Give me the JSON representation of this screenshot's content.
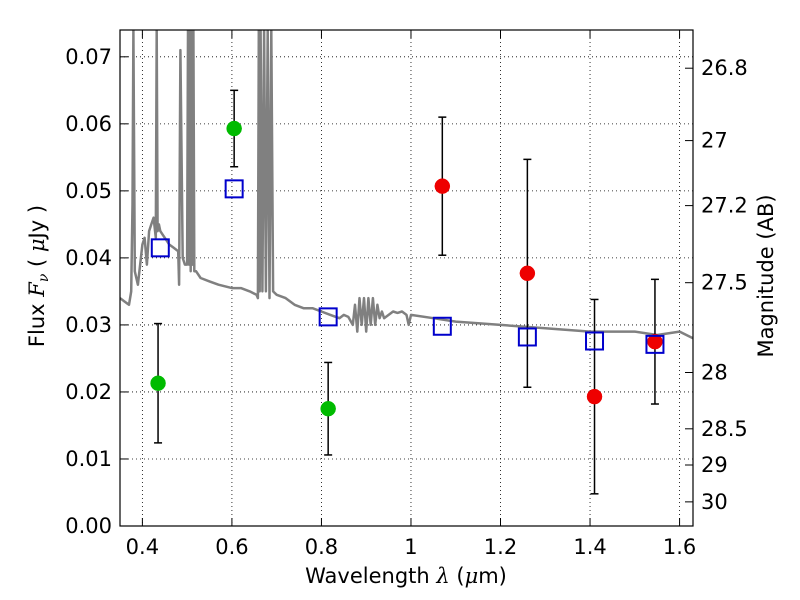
{
  "chart_data": {
    "type": "scatter",
    "xlim": [
      0.35,
      1.63
    ],
    "ylim": [
      0.0,
      0.074
    ],
    "grid": true,
    "x_ticks": [
      0.4,
      0.6,
      0.8,
      1.0,
      1.2,
      1.4,
      1.6
    ],
    "x_tick_labels": [
      "0.4",
      "0.6",
      "0.8",
      "1",
      "1.2",
      "1.4",
      "1.6"
    ],
    "y_ticks": [
      0.0,
      0.01,
      0.02,
      0.03,
      0.04,
      0.05,
      0.06,
      0.07
    ],
    "y_tick_labels": [
      "0.00",
      "0.01",
      "0.02",
      "0.03",
      "0.04",
      "0.05",
      "0.06",
      "0.07"
    ],
    "x_label": {
      "prefix": "Wavelength  ",
      "symbol": "λ",
      "suffix": " (",
      "unit_symbol": "μ",
      "unit_tail": "m)"
    },
    "y_label": {
      "prefix": "Flux  ",
      "symbol": "F",
      "subscript": "ν",
      "middle": "  (  ",
      "unit_symbol": "μ",
      "unit_tail": "Jy )"
    },
    "right_axis": {
      "label": "Magnitude (AB)",
      "ticks": [
        {
          "flux": 0.0683,
          "label": "26.8"
        },
        {
          "flux": 0.0575,
          "label": "27"
        },
        {
          "flux": 0.0478,
          "label": "27.2"
        },
        {
          "flux": 0.0363,
          "label": "27.5"
        },
        {
          "flux": 0.0229,
          "label": "28"
        },
        {
          "flux": 0.0145,
          "label": "28.5"
        },
        {
          "flux": 0.0091,
          "label": "29"
        },
        {
          "flux": 0.0036,
          "label": "30"
        }
      ]
    },
    "series": [
      {
        "name": "model-sed",
        "kind": "line",
        "color": "#808080",
        "x": [
          0.35,
          0.36,
          0.37,
          0.375,
          0.378,
          0.38,
          0.383,
          0.39,
          0.4,
          0.405,
          0.41,
          0.415,
          0.42,
          0.425,
          0.43,
          0.432,
          0.434,
          0.437,
          0.44,
          0.445,
          0.45,
          0.455,
          0.46,
          0.47,
          0.48,
          0.482,
          0.485,
          0.49,
          0.495,
          0.5,
          0.502,
          0.504,
          0.506,
          0.508,
          0.51,
          0.512,
          0.514,
          0.516,
          0.52,
          0.53,
          0.55,
          0.57,
          0.6,
          0.62,
          0.64,
          0.655,
          0.658,
          0.66,
          0.662,
          0.664,
          0.668,
          0.672,
          0.676,
          0.68,
          0.684,
          0.688,
          0.692,
          0.7,
          0.72,
          0.74,
          0.76,
          0.78,
          0.8,
          0.82,
          0.84,
          0.85,
          0.86,
          0.87,
          0.875,
          0.88,
          0.885,
          0.89,
          0.895,
          0.9,
          0.905,
          0.91,
          0.915,
          0.92,
          0.925,
          0.93,
          0.935,
          0.94,
          0.95,
          0.96,
          0.97,
          0.98,
          0.99,
          0.995,
          1.0,
          1.05,
          1.1,
          1.2,
          1.3,
          1.4,
          1.5,
          1.55,
          1.6,
          1.63
        ],
        "y": [
          0.034,
          0.0335,
          0.033,
          0.035,
          0.048,
          0.074,
          0.038,
          0.036,
          0.042,
          0.043,
          0.039,
          0.044,
          0.045,
          0.046,
          0.043,
          0.074,
          0.044,
          0.045,
          0.044,
          0.0435,
          0.043,
          0.0425,
          0.042,
          0.0415,
          0.041,
          0.036,
          0.071,
          0.04,
          0.039,
          0.039,
          0.074,
          0.039,
          0.074,
          0.038,
          0.074,
          0.039,
          0.074,
          0.038,
          0.038,
          0.037,
          0.0365,
          0.036,
          0.0355,
          0.0355,
          0.035,
          0.0345,
          0.034,
          0.074,
          0.035,
          0.074,
          0.035,
          0.074,
          0.035,
          0.074,
          0.034,
          0.074,
          0.035,
          0.0345,
          0.034,
          0.033,
          0.0325,
          0.0325,
          0.032,
          0.0315,
          0.031,
          0.0315,
          0.0312,
          0.03,
          0.033,
          0.029,
          0.034,
          0.03,
          0.034,
          0.029,
          0.034,
          0.03,
          0.034,
          0.03,
          0.033,
          0.031,
          0.032,
          0.031,
          0.0315,
          0.032,
          0.0318,
          0.032,
          0.0315,
          0.03,
          0.0315,
          0.031,
          0.0305,
          0.03,
          0.0295,
          0.029,
          0.029,
          0.0285,
          0.029,
          0.028
        ]
      },
      {
        "name": "model-photometry",
        "kind": "open-square",
        "color": "#0000cc",
        "x": [
          0.44,
          0.605,
          0.815,
          1.07,
          1.26,
          1.41,
          1.545
        ],
        "y": [
          0.0415,
          0.0503,
          0.0312,
          0.0298,
          0.0282,
          0.0276,
          0.0271
        ]
      },
      {
        "name": "observed-green",
        "kind": "filled-circle",
        "color": "#00bb00",
        "x": [
          0.435,
          0.605,
          0.815
        ],
        "y": [
          0.0213,
          0.0593,
          0.0175
        ],
        "yerr": [
          0.0089,
          0.0057,
          0.0069
        ]
      },
      {
        "name": "observed-red",
        "kind": "filled-circle",
        "color": "#ee0000",
        "x": [
          1.07,
          1.26,
          1.41,
          1.545
        ],
        "y": [
          0.0507,
          0.0377,
          0.0193,
          0.0275
        ],
        "yerr": [
          0.0103,
          0.017,
          0.0145,
          0.0093
        ]
      }
    ]
  }
}
